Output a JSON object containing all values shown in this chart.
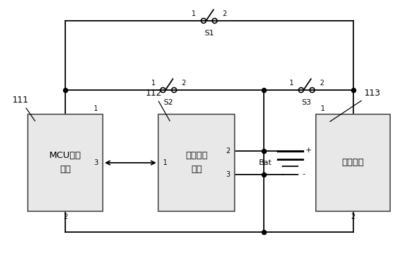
{
  "bg_color": "#ffffff",
  "line_color": "#000000",
  "fig_width": 6.05,
  "fig_height": 3.84,
  "dpi": 100,
  "mcu_label1": "MCU控制",
  "mcu_label2": "模块",
  "volt_label1": "电压测量",
  "volt_label2": "模块",
  "store_label": "储能单元",
  "mcu_id": "111",
  "volt_id": "112",
  "store_id": "113",
  "S1_label": "S1",
  "S2_label": "S2",
  "S3_label": "S3",
  "bat_label": "Bat",
  "box_facecolor": "#e8e8e8",
  "box_edgecolor": "#555555"
}
